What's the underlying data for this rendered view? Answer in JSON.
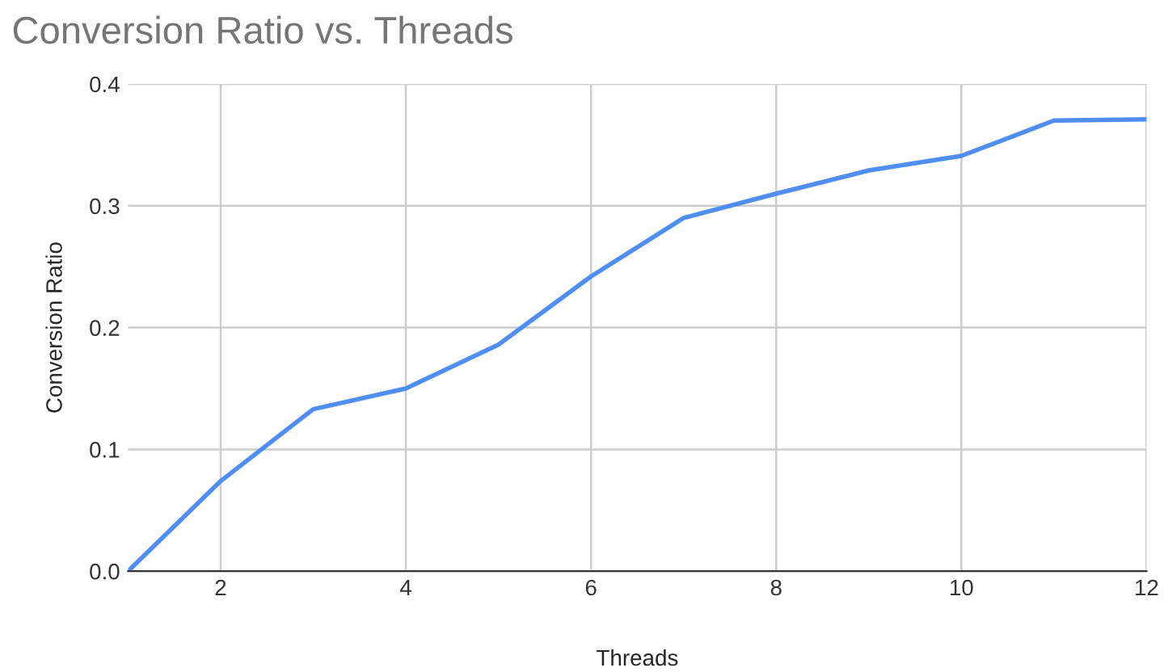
{
  "chart_data": {
    "type": "line",
    "title": "Conversion Ratio vs. Threads",
    "xlabel": "Threads",
    "ylabel": "Conversion Ratio",
    "x": [
      1,
      2,
      3,
      4,
      5,
      6,
      7,
      8,
      9,
      10,
      11,
      12
    ],
    "series": [
      {
        "color": "#4f8ef5",
        "values": [
          0.0,
          0.074,
          0.133,
          0.15,
          0.186,
          0.242,
          0.29,
          0.31,
          0.329,
          0.341,
          0.37,
          0.371
        ]
      }
    ],
    "xlim": [
      1,
      12
    ],
    "xticks": [
      2,
      4,
      6,
      8,
      10,
      12
    ],
    "ylim": [
      0,
      0.4
    ],
    "yticks": [
      {
        "value": 0,
        "label": "0.0"
      },
      {
        "value": 0.1,
        "label": "0.1"
      },
      {
        "value": 0.2,
        "label": "0.2"
      },
      {
        "value": 0.3,
        "label": "0.3"
      },
      {
        "value": 0.4,
        "label": "0.4"
      }
    ],
    "grid": true,
    "marker": "none",
    "line_style": "solid"
  }
}
